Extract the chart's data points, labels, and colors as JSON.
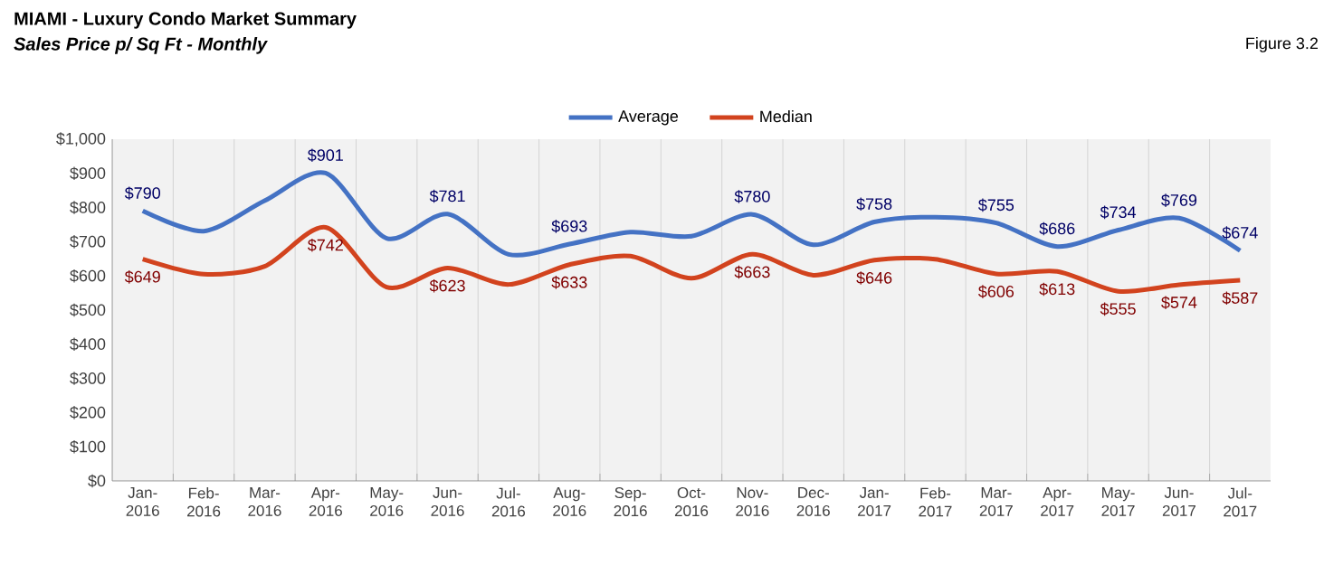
{
  "chart_data": {
    "type": "line",
    "title": "MIAMI - Luxury Condo Market Summary",
    "subtitle": "Sales Price  p/ Sq Ft - Monthly",
    "annotations": [
      "Figure 3.2"
    ],
    "categories": [
      "Jan-2016",
      "Feb-2016",
      "Mar-2016",
      "Apr-2016",
      "May-2016",
      "Jun-2016",
      "Jul-2016",
      "Aug-2016",
      "Sep-2016",
      "Oct-2016",
      "Nov-2016",
      "Dec-2016",
      "Jan-2017",
      "Feb-2017",
      "Mar-2017",
      "Apr-2017",
      "May-2017",
      "Jun-2017",
      "Jul-2017"
    ],
    "series": [
      {
        "name": "Average",
        "color": "#4472c4",
        "values": [
          790,
          731,
          820,
          901,
          710,
          781,
          663,
          693,
          728,
          716,
          780,
          691,
          758,
          772,
          755,
          686,
          734,
          769,
          674
        ],
        "value_labels": [
          "$790",
          null,
          null,
          "$901",
          null,
          "$781",
          null,
          "$693",
          null,
          null,
          "$780",
          null,
          "$758",
          null,
          "$755",
          "$686",
          "$734",
          "$769",
          "$674"
        ]
      },
      {
        "name": "Median",
        "color": "#d2431e",
        "values": [
          649,
          605,
          628,
          742,
          567,
          623,
          575,
          633,
          658,
          593,
          663,
          602,
          646,
          649,
          606,
          613,
          555,
          574,
          587
        ],
        "value_labels": [
          "$649",
          null,
          null,
          "$742",
          null,
          "$623",
          null,
          "$633",
          null,
          null,
          "$663",
          null,
          "$646",
          null,
          "$606",
          "$613",
          "$555",
          "$574",
          "$587"
        ]
      }
    ],
    "ylim": [
      0,
      1000
    ],
    "yticks": [
      {
        "value": 0,
        "label": "$0"
      },
      {
        "value": 100,
        "label": "$100"
      },
      {
        "value": 200,
        "label": "$200"
      },
      {
        "value": 300,
        "label": "$300"
      },
      {
        "value": 400,
        "label": "$400"
      },
      {
        "value": 500,
        "label": "$500"
      },
      {
        "value": 600,
        "label": "$600"
      },
      {
        "value": 700,
        "label": "$700"
      },
      {
        "value": 800,
        "label": "$800"
      },
      {
        "value": 900,
        "label": "$900"
      },
      {
        "value": 1000,
        "label": "$1,000"
      }
    ],
    "grid": "x",
    "legend": "top",
    "marker": "none",
    "line_style": "solid"
  }
}
